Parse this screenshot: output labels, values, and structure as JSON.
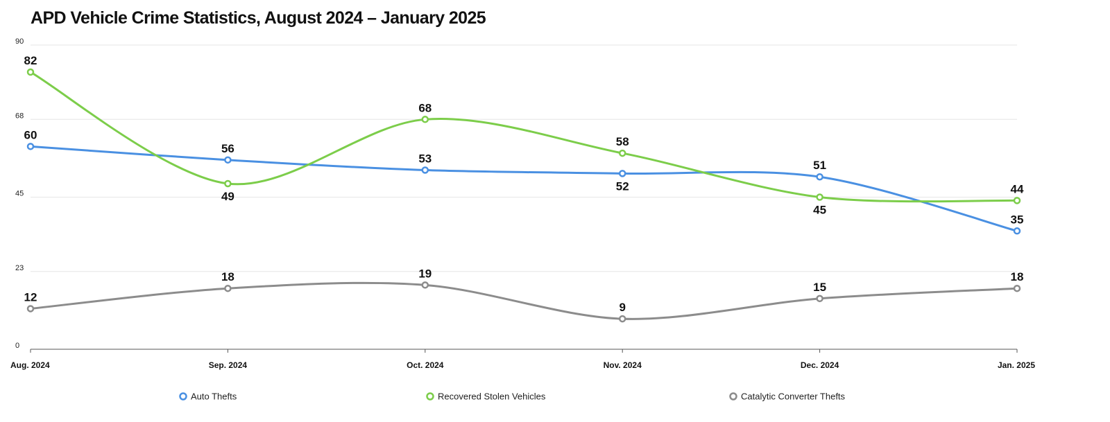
{
  "chart_data": {
    "type": "line",
    "title": "APD Vehicle Crime Statistics, August 2024 – January 2025",
    "categories": [
      "Aug. 2024",
      "Sep. 2024",
      "Oct. 2024",
      "Nov. 2024",
      "Dec. 2024",
      "Jan. 2025"
    ],
    "yticks": [
      0,
      23,
      45,
      68,
      90
    ],
    "ylim": [
      0,
      90
    ],
    "grid": true,
    "smooth": true,
    "legend_position": "bottom",
    "series": [
      {
        "name": "Auto Thefts",
        "color": "#4a90e2",
        "values": [
          60,
          56,
          53,
          52,
          51,
          35
        ]
      },
      {
        "name": "Recovered Stolen Vehicles",
        "color": "#7ccd4a",
        "values": [
          82,
          49,
          68,
          58,
          45,
          44
        ]
      },
      {
        "name": "Catalytic Converter Thefts",
        "color": "#8c8c8c",
        "values": [
          12,
          18,
          19,
          9,
          15,
          18
        ]
      }
    ]
  }
}
